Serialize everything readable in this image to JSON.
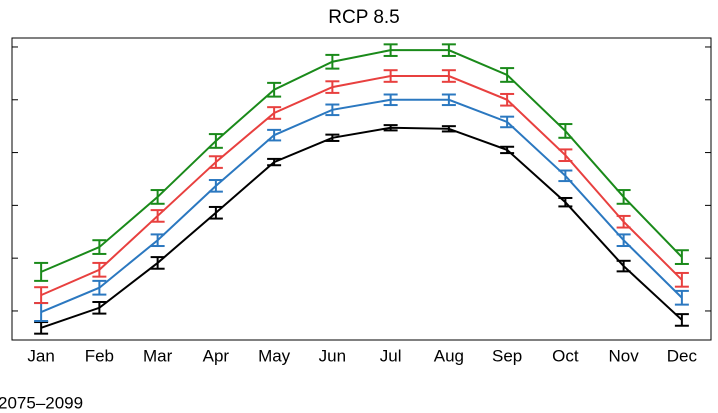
{
  "chart_data": {
    "type": "line",
    "title": "RCP 8.5",
    "note": "2075–2099",
    "categories": [
      "Jan",
      "Feb",
      "Mar",
      "Apr",
      "May",
      "Jun",
      "Jul",
      "Aug",
      "Sep",
      "Oct",
      "Nov",
      "Dec"
    ],
    "ylim": [
      -0.55,
      5.17
    ],
    "yticks": [
      0,
      1,
      2,
      3,
      4,
      5
    ],
    "series": [
      {
        "color": "#000000",
        "values": [
          -0.32,
          0.06,
          0.91,
          1.86,
          2.82,
          3.28,
          3.47,
          3.45,
          3.05,
          2.06,
          0.85,
          -0.17
        ],
        "errors": [
          0.11,
          0.11,
          0.11,
          0.11,
          0.06,
          0.06,
          0.05,
          0.05,
          0.06,
          0.08,
          0.1,
          0.11
        ]
      },
      {
        "color": "#2b78c0",
        "values": [
          -0.02,
          0.44,
          1.34,
          2.37,
          3.33,
          3.81,
          4.0,
          4.0,
          3.58,
          2.56,
          1.34,
          0.25
        ],
        "errors": [
          0.17,
          0.13,
          0.11,
          0.11,
          0.1,
          0.1,
          0.1,
          0.1,
          0.1,
          0.1,
          0.11,
          0.13
        ]
      },
      {
        "color": "#e8403f",
        "values": [
          0.3,
          0.78,
          1.8,
          2.82,
          3.75,
          4.24,
          4.45,
          4.45,
          4.0,
          2.95,
          1.69,
          0.59
        ],
        "errors": [
          0.15,
          0.13,
          0.11,
          0.11,
          0.11,
          0.11,
          0.11,
          0.11,
          0.11,
          0.11,
          0.11,
          0.13
        ]
      },
      {
        "color": "#1a8a1a",
        "values": [
          0.74,
          1.21,
          2.16,
          3.22,
          4.19,
          4.72,
          4.94,
          4.94,
          4.47,
          3.41,
          2.16,
          1.02
        ],
        "errors": [
          0.17,
          0.13,
          0.13,
          0.13,
          0.13,
          0.13,
          0.11,
          0.11,
          0.13,
          0.13,
          0.13,
          0.13
        ]
      }
    ]
  }
}
